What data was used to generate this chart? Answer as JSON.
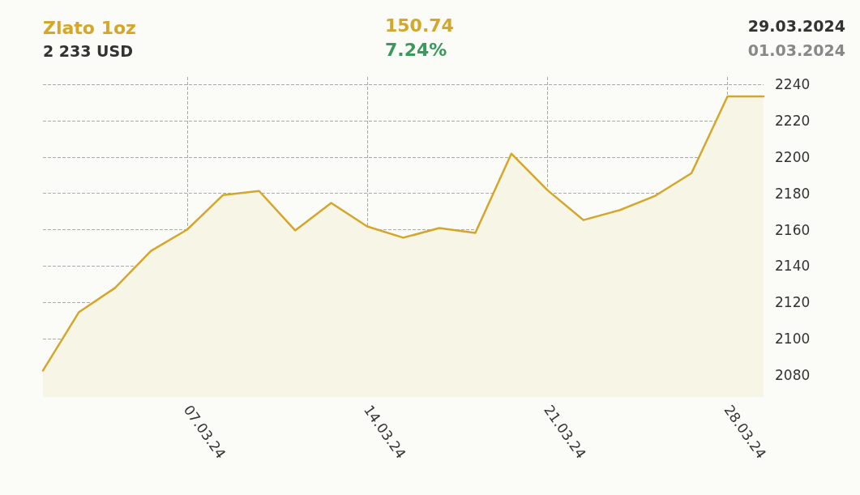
{
  "chart_data": {
    "type": "area",
    "title": "Zlato 1oz",
    "subtitle": "2 233 USD",
    "annotations": [
      "150.74",
      "7.24%",
      "29.03.2024",
      "01.03.2024"
    ],
    "categories": [
      null,
      null,
      null,
      null,
      "07.03.24",
      null,
      null,
      null,
      null,
      "14.03.24",
      null,
      null,
      null,
      null,
      "21.03.24",
      null,
      null,
      null,
      null,
      "28.03.24",
      null
    ],
    "series": [
      {
        "color": "#d4a62a",
        "values": [
          2082.5,
          2114.7,
          2128,
          2148.4,
          2160,
          2179.1,
          2181.3,
          2159.6,
          2174.7,
          2161.8,
          2155.6,
          2160.9,
          2158.2,
          2201.8,
          2181.8,
          2165.3,
          2170.7,
          2178.7,
          2191.1,
          2233.3,
          2233.3
        ]
      }
    ],
    "ylim": [
      2068,
      2244
    ],
    "yticks": [
      2080,
      2100,
      2120,
      2140,
      2160,
      2180,
      2200,
      2220,
      2240
    ],
    "grid": true,
    "marker": "none",
    "line_style": "solid"
  }
}
